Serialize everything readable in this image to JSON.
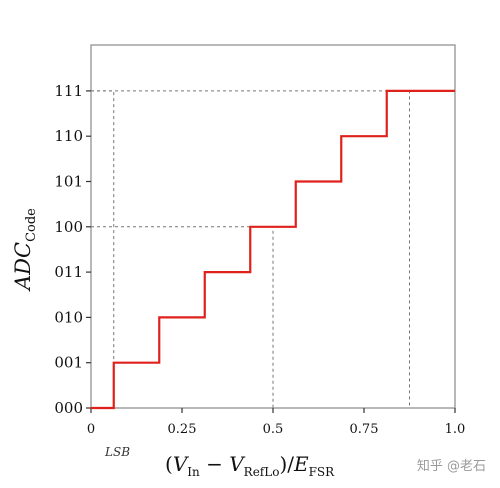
{
  "chart_data": {
    "type": "line",
    "subtype": "step",
    "x_domain": [
      0,
      1
    ],
    "y_codes": [
      "000",
      "001",
      "010",
      "011",
      "100",
      "101",
      "110",
      "111"
    ],
    "x_ticks": [
      {
        "value": 0,
        "label": "0"
      },
      {
        "value": 0.25,
        "label": "0.25"
      },
      {
        "value": 0.5,
        "label": "0.5"
      },
      {
        "value": 0.75,
        "label": "0.75"
      },
      {
        "value": 1.0,
        "label": "1.0"
      }
    ],
    "steps": [
      {
        "x_start": 0,
        "x_end": 0.0625,
        "code": "000"
      },
      {
        "x_start": 0.0625,
        "x_end": 0.1875,
        "code": "001"
      },
      {
        "x_start": 0.1875,
        "x_end": 0.3125,
        "code": "010"
      },
      {
        "x_start": 0.3125,
        "x_end": 0.4375,
        "code": "011"
      },
      {
        "x_start": 0.4375,
        "x_end": 0.5625,
        "code": "100"
      },
      {
        "x_start": 0.5625,
        "x_end": 0.6875,
        "code": "101"
      },
      {
        "x_start": 0.6875,
        "x_end": 0.8125,
        "code": "110"
      },
      {
        "x_start": 0.8125,
        "x_end": 1.0,
        "code": "111"
      }
    ],
    "guides": [
      {
        "x": 0.0625,
        "code": "111"
      },
      {
        "x": 0.5,
        "code": "100"
      },
      {
        "x": 0.875,
        "code": "111"
      }
    ],
    "xlabel": "(V_In − V_RefLo)/E_FSR",
    "ylabel": "ADC_Code",
    "annotation": "LSB",
    "line_color": "#e0211b",
    "grid": false
  },
  "watermark": "知乎 @老石"
}
